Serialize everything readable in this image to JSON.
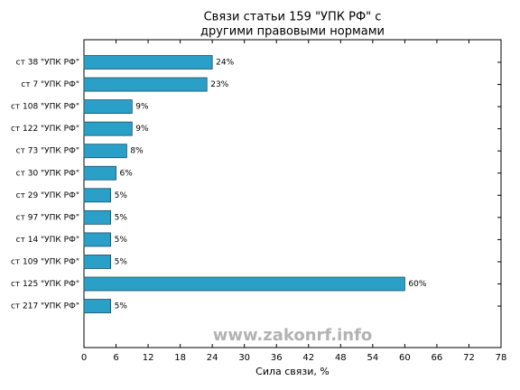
{
  "chart_data": {
    "type": "barh",
    "title": [
      "Связи статьи 159 \"УПК РФ\" с",
      "другими правовыми нормами"
    ],
    "xlabel": "Сила связи, %",
    "watermark": "www.zakonrf.info",
    "categories": [
      "ст 38 \"УПК РФ\"",
      "ст 7 \"УПК РФ\"",
      "ст 108 \"УПК РФ\"",
      "ст 122 \"УПК РФ\"",
      "ст 73 \"УПК РФ\"",
      "ст 30 \"УПК РФ\"",
      "ст 29 \"УПК РФ\"",
      "ст 97 \"УПК РФ\"",
      "ст 14 \"УПК РФ\"",
      "ст 109 \"УПК РФ\"",
      "ст 125 \"УПК РФ\"",
      "ст 217 \"УПК РФ\""
    ],
    "values": [
      24,
      23,
      9,
      9,
      8,
      6,
      5,
      5,
      5,
      5,
      60,
      5
    ],
    "value_labels": [
      "24%",
      "23%",
      "9%",
      "9%",
      "8%",
      "6%",
      "5%",
      "5%",
      "5%",
      "5%",
      "60%",
      "5%"
    ],
    "color": "#2aa0c8",
    "xlim": [
      0,
      78
    ],
    "xticks": [
      0,
      6,
      12,
      18,
      24,
      30,
      36,
      42,
      48,
      54,
      60,
      66,
      72,
      78
    ],
    "grid": false
  }
}
